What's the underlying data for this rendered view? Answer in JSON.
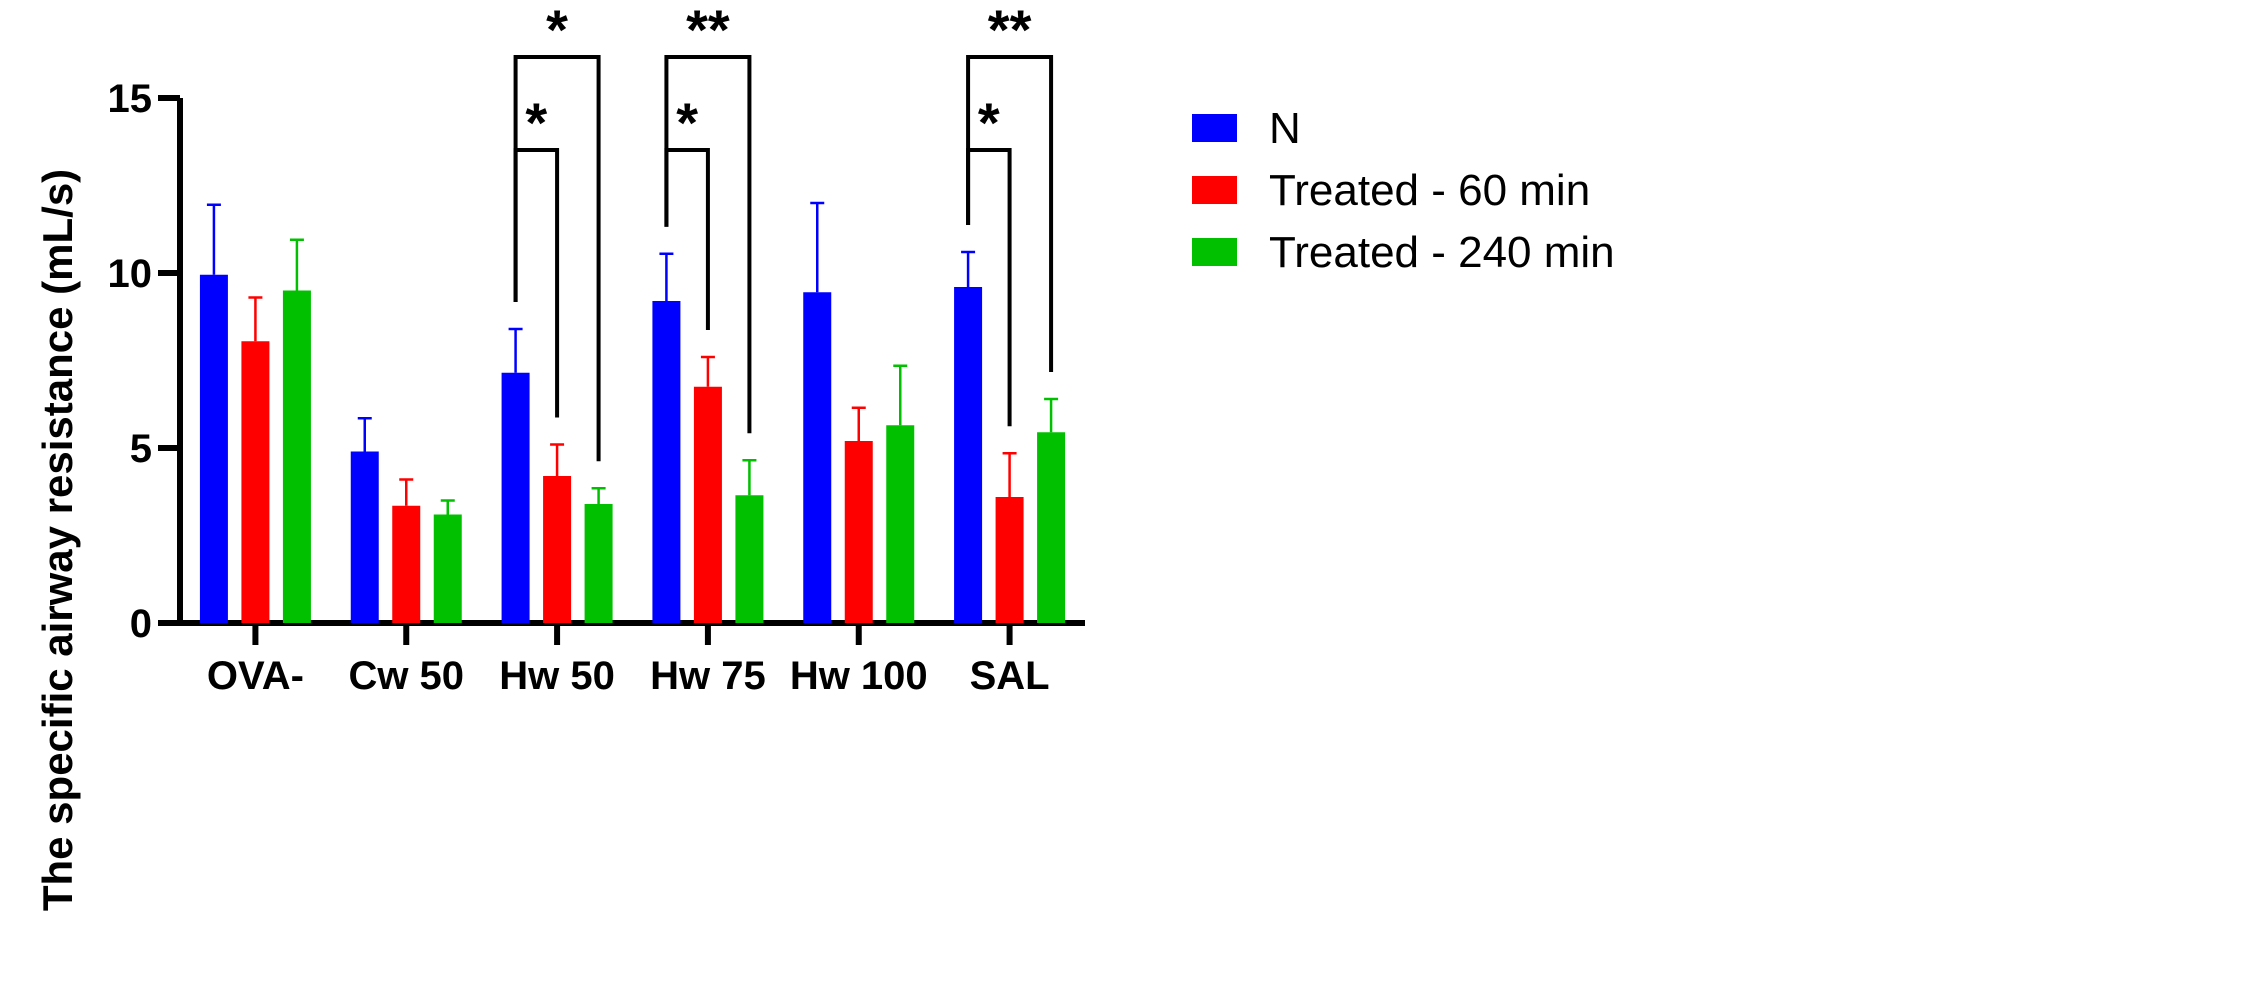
{
  "chart_data": {
    "type": "bar",
    "title": "",
    "xlabel": "",
    "ylabel": "The specific airway resistance (mL/s)",
    "ylim": [
      0,
      15
    ],
    "yticks": [
      "0",
      "5",
      "10",
      "15"
    ],
    "categories": [
      "OVA-",
      "Cw 50",
      "Hw 50",
      "Hw 75",
      "Hw 100",
      "SAL"
    ],
    "series": [
      {
        "name": "N",
        "color": "#0000ff",
        "values": [
          9.95,
          4.9,
          7.15,
          9.2,
          9.45,
          9.6
        ],
        "errors": [
          2.0,
          0.95,
          1.25,
          1.35,
          2.55,
          1.0
        ]
      },
      {
        "name": "Treated - 60 min",
        "color": "#ff0000",
        "values": [
          8.05,
          3.35,
          4.2,
          6.75,
          5.2,
          3.6
        ],
        "errors": [
          1.25,
          0.75,
          0.9,
          0.85,
          0.95,
          1.25
        ]
      },
      {
        "name": "Treated - 240 min",
        "color": "#00c000",
        "values": [
          9.5,
          3.1,
          3.4,
          3.65,
          5.65,
          5.45
        ],
        "errors": [
          1.45,
          0.4,
          0.45,
          1.0,
          1.7,
          0.95
        ]
      }
    ],
    "significance": [
      {
        "category": 2,
        "from": 0,
        "to": 1,
        "level": "inner",
        "label": "*"
      },
      {
        "category": 2,
        "from": 0,
        "to": 2,
        "level": "outer",
        "label": "*"
      },
      {
        "category": 3,
        "from": 0,
        "to": 1,
        "level": "inner",
        "label": "*"
      },
      {
        "category": 3,
        "from": 0,
        "to": 2,
        "level": "outer",
        "label": "**"
      },
      {
        "category": 5,
        "from": 0,
        "to": 1,
        "level": "inner",
        "label": "*"
      },
      {
        "category": 5,
        "from": 0,
        "to": 2,
        "level": "outer",
        "label": "**"
      }
    ],
    "legend_position": "right"
  }
}
